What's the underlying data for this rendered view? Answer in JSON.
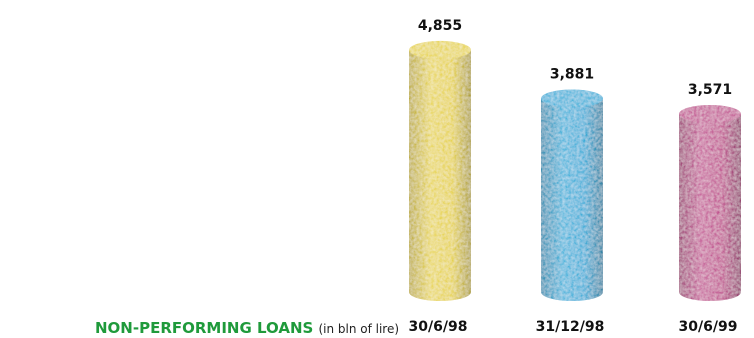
{
  "chart_data": {
    "type": "bar",
    "title": "NON-PERFORMING LOANS",
    "subtitle": "(in bln of lire)",
    "categories": [
      "30/6/98",
      "31/12/98",
      "30/6/99"
    ],
    "values": [
      4855,
      3881,
      3571
    ],
    "value_labels": [
      "4,855",
      "3,881",
      "3,571"
    ],
    "colors": [
      "#e6d24a",
      "#35acd8",
      "#c0508e"
    ],
    "bar_style": "cylinder",
    "grid": false,
    "legend": "none"
  }
}
